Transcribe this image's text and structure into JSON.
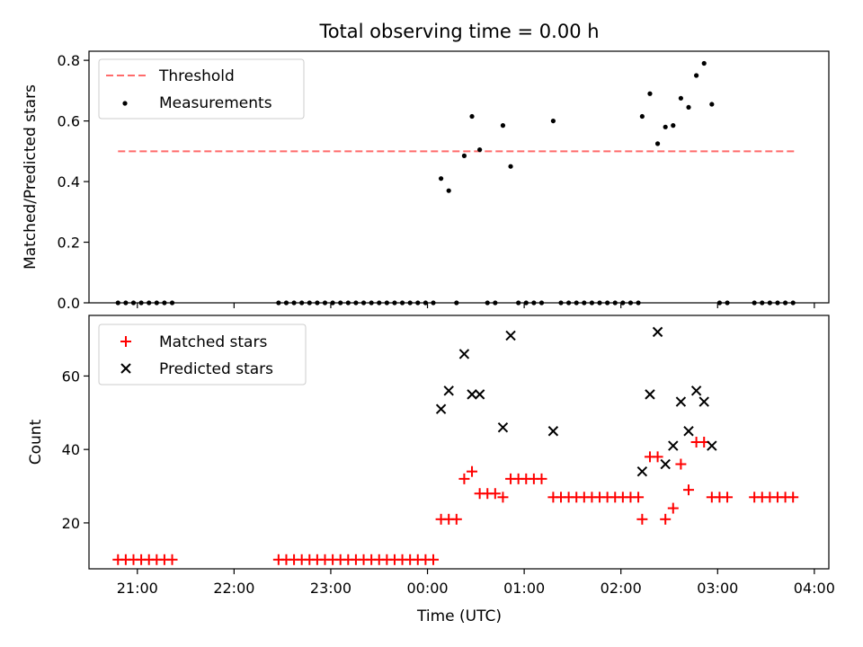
{
  "title": "Total observing time = 0.00 h",
  "top": {
    "ylabel": "Matched/Predicted stars",
    "legend": {
      "threshold": "Threshold",
      "measurements": "Measurements"
    }
  },
  "bottom": {
    "ylabel": "Count",
    "xlabel": "Time (UTC)",
    "legend": {
      "matched": "Matched stars",
      "predicted": "Predicted stars"
    }
  },
  "chart_data": [
    {
      "type": "scatter",
      "title": "Total observing time = 0.00 h",
      "xlabel": "",
      "ylabel": "Matched/Predicted stars",
      "x_unit": "hours since 21:00 UTC",
      "xlim": [
        -0.5,
        7.15
      ],
      "ylim": [
        0,
        0.83
      ],
      "yticks": [
        0.0,
        0.2,
        0.4,
        0.6,
        0.8
      ],
      "ytick_labels": [
        "0.0",
        "0.2",
        "0.4",
        "0.6",
        "0.8"
      ],
      "legend_position": "top-left",
      "threshold": {
        "name": "Threshold",
        "value": 0.5,
        "x_range": [
          -0.2,
          6.8
        ],
        "color": "#ff6b6b",
        "style": "dashed"
      },
      "series": [
        {
          "name": "Measurements",
          "color": "#000000",
          "points": [
            [
              -0.2,
              0
            ],
            [
              -0.12,
              0
            ],
            [
              -0.04,
              0
            ],
            [
              0.04,
              0
            ],
            [
              0.12,
              0
            ],
            [
              0.2,
              0
            ],
            [
              0.28,
              0
            ],
            [
              0.36,
              0
            ],
            [
              1.46,
              0
            ],
            [
              1.54,
              0
            ],
            [
              1.62,
              0
            ],
            [
              1.7,
              0
            ],
            [
              1.78,
              0
            ],
            [
              1.86,
              0
            ],
            [
              1.94,
              0
            ],
            [
              2.02,
              0
            ],
            [
              2.1,
              0
            ],
            [
              2.18,
              0
            ],
            [
              2.26,
              0
            ],
            [
              2.34,
              0
            ],
            [
              2.42,
              0
            ],
            [
              2.5,
              0
            ],
            [
              2.58,
              0
            ],
            [
              2.66,
              0
            ],
            [
              2.74,
              0
            ],
            [
              2.82,
              0
            ],
            [
              2.9,
              0
            ],
            [
              2.98,
              0
            ],
            [
              3.06,
              0
            ],
            [
              3.14,
              0.41
            ],
            [
              3.22,
              0.37
            ],
            [
              3.3,
              0
            ],
            [
              3.38,
              0.485
            ],
            [
              3.46,
              0.615
            ],
            [
              3.54,
              0.505
            ],
            [
              3.62,
              0
            ],
            [
              3.7,
              0
            ],
            [
              3.78,
              0.585
            ],
            [
              3.86,
              0.45
            ],
            [
              3.94,
              0
            ],
            [
              4.02,
              0
            ],
            [
              4.1,
              0
            ],
            [
              4.18,
              0
            ],
            [
              4.3,
              0.6
            ],
            [
              4.38,
              0
            ],
            [
              4.46,
              0
            ],
            [
              4.54,
              0
            ],
            [
              4.62,
              0
            ],
            [
              4.7,
              0
            ],
            [
              4.78,
              0
            ],
            [
              4.86,
              0
            ],
            [
              4.94,
              0
            ],
            [
              5.02,
              0
            ],
            [
              5.1,
              0
            ],
            [
              5.18,
              0
            ],
            [
              5.22,
              0.615
            ],
            [
              5.3,
              0.69
            ],
            [
              5.38,
              0.525
            ],
            [
              5.46,
              0.58
            ],
            [
              5.54,
              0.585
            ],
            [
              5.62,
              0.675
            ],
            [
              5.7,
              0.645
            ],
            [
              5.78,
              0.75
            ],
            [
              5.86,
              0.79
            ],
            [
              5.94,
              0.655
            ],
            [
              6.02,
              0
            ],
            [
              6.1,
              0
            ],
            [
              6.38,
              0
            ],
            [
              6.46,
              0
            ],
            [
              6.54,
              0
            ],
            [
              6.62,
              0
            ],
            [
              6.7,
              0
            ],
            [
              6.78,
              0
            ]
          ]
        }
      ]
    },
    {
      "type": "scatter",
      "title": "",
      "xlabel": "Time (UTC)",
      "ylabel": "Count",
      "x_unit": "hours since 21:00 UTC",
      "xlim": [
        -0.5,
        7.15
      ],
      "ylim": [
        7.5,
        76.5
      ],
      "yticks": [
        20,
        40,
        60
      ],
      "ytick_labels": [
        "20",
        "40",
        "60"
      ],
      "xticks": [
        0,
        1,
        2,
        3,
        4,
        5,
        6,
        7
      ],
      "xtick_labels": [
        "21:00",
        "22:00",
        "23:00",
        "00:00",
        "01:00",
        "02:00",
        "03:00",
        "04:00"
      ],
      "legend_position": "top-left",
      "series": [
        {
          "name": "Matched stars",
          "color": "#ff0000",
          "marker": "+",
          "points": [
            [
              -0.2,
              10
            ],
            [
              -0.12,
              10
            ],
            [
              -0.04,
              10
            ],
            [
              0.04,
              10
            ],
            [
              0.12,
              10
            ],
            [
              0.2,
              10
            ],
            [
              0.28,
              10
            ],
            [
              0.36,
              10
            ],
            [
              1.46,
              10
            ],
            [
              1.54,
              10
            ],
            [
              1.62,
              10
            ],
            [
              1.7,
              10
            ],
            [
              1.78,
              10
            ],
            [
              1.86,
              10
            ],
            [
              1.94,
              10
            ],
            [
              2.02,
              10
            ],
            [
              2.1,
              10
            ],
            [
              2.18,
              10
            ],
            [
              2.26,
              10
            ],
            [
              2.34,
              10
            ],
            [
              2.42,
              10
            ],
            [
              2.5,
              10
            ],
            [
              2.58,
              10
            ],
            [
              2.66,
              10
            ],
            [
              2.74,
              10
            ],
            [
              2.82,
              10
            ],
            [
              2.9,
              10
            ],
            [
              2.98,
              10
            ],
            [
              3.06,
              10
            ],
            [
              3.14,
              21
            ],
            [
              3.22,
              21
            ],
            [
              3.3,
              21
            ],
            [
              3.38,
              32
            ],
            [
              3.46,
              34
            ],
            [
              3.54,
              28
            ],
            [
              3.62,
              28
            ],
            [
              3.7,
              28
            ],
            [
              3.78,
              27
            ],
            [
              3.86,
              32
            ],
            [
              3.94,
              32
            ],
            [
              4.02,
              32
            ],
            [
              4.1,
              32
            ],
            [
              4.18,
              32
            ],
            [
              4.3,
              27
            ],
            [
              4.38,
              27
            ],
            [
              4.46,
              27
            ],
            [
              4.54,
              27
            ],
            [
              4.62,
              27
            ],
            [
              4.7,
              27
            ],
            [
              4.78,
              27
            ],
            [
              4.86,
              27
            ],
            [
              4.94,
              27
            ],
            [
              5.02,
              27
            ],
            [
              5.1,
              27
            ],
            [
              5.18,
              27
            ],
            [
              5.22,
              21
            ],
            [
              5.3,
              38
            ],
            [
              5.38,
              38
            ],
            [
              5.46,
              21
            ],
            [
              5.54,
              24
            ],
            [
              5.62,
              36
            ],
            [
              5.7,
              29
            ],
            [
              5.78,
              42
            ],
            [
              5.86,
              42
            ],
            [
              5.94,
              27
            ],
            [
              6.02,
              27
            ],
            [
              6.1,
              27
            ],
            [
              6.38,
              27
            ],
            [
              6.46,
              27
            ],
            [
              6.54,
              27
            ],
            [
              6.62,
              27
            ],
            [
              6.7,
              27
            ],
            [
              6.78,
              27
            ]
          ]
        },
        {
          "name": "Predicted stars",
          "color": "#000000",
          "marker": "x",
          "points": [
            [
              3.14,
              51
            ],
            [
              3.22,
              56
            ],
            [
              3.38,
              66
            ],
            [
              3.46,
              55
            ],
            [
              3.54,
              55
            ],
            [
              3.78,
              46
            ],
            [
              3.86,
              71
            ],
            [
              4.3,
              45
            ],
            [
              5.22,
              34
            ],
            [
              5.3,
              55
            ],
            [
              5.38,
              72
            ],
            [
              5.46,
              36
            ],
            [
              5.54,
              41
            ],
            [
              5.62,
              53
            ],
            [
              5.7,
              45
            ],
            [
              5.78,
              56
            ],
            [
              5.86,
              53
            ],
            [
              5.94,
              41
            ]
          ]
        }
      ]
    }
  ]
}
